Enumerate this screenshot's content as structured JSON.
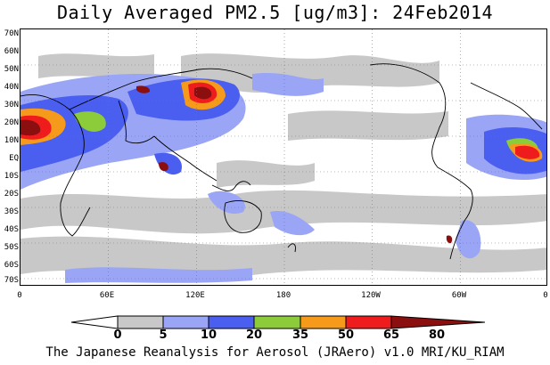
{
  "title": "Daily Averaged PM2.5 [ug/m3]: 24Feb2014",
  "lat_labels": [
    "70N",
    "60N",
    "50N",
    "40N",
    "30N",
    "20N",
    "10N",
    "EQ",
    "10S",
    "20S",
    "30S",
    "40S",
    "50S",
    "60S",
    "70S"
  ],
  "lon_labels": [
    "0",
    "60E",
    "120E",
    "180",
    "120W",
    "60W",
    "0"
  ],
  "colorbar": {
    "levels": [
      "0",
      "5",
      "10",
      "20",
      "35",
      "50",
      "65",
      "80"
    ],
    "colors": [
      "#ffffff",
      "#c8c8c8",
      "#9aa5f5",
      "#4a5ef0",
      "#8ccc3a",
      "#f59a1a",
      "#ee1c1c",
      "#8c0f0f"
    ]
  },
  "footer": "The Japanese Reanalysis for Aerosol (JRAero) v1.0 MRI/KU_RIAM"
}
